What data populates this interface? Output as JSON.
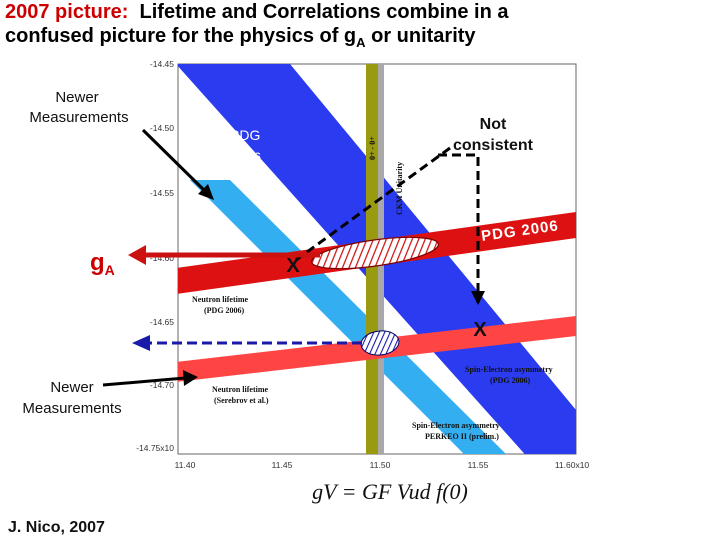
{
  "slide": {
    "title_lead": "2007 picture:",
    "title_rest_1": "Lifetime and Correlations combine in a",
    "title_line2_pre": "confused picture for the physics of g",
    "title_line2_sub": "A",
    "title_line2_post": " or unitarity",
    "credit": "J. Nico, 2007",
    "formula": "gV = GF Vud f(0)"
  },
  "annotations": {
    "newer_top_1": "Newer",
    "newer_top_2": "Measurements",
    "newer_bottom_1": "Newer",
    "newer_bottom_2": "Measurements",
    "ga_main": "g",
    "ga_sub": "A",
    "pdg_box_1": "PDG",
    "pdg_box_2": "2006",
    "not_consistent_1": "Not",
    "not_consistent_2": "consistent",
    "pdg2006_band": "PDG 2006",
    "x_left": "X",
    "x_right": "X"
  },
  "chart_data": {
    "type": "band-plot",
    "xlim": [
      11.4,
      11.6
    ],
    "ylim": [
      -14.75,
      -14.45
    ],
    "x_ticks": [
      "11.40",
      "11.45",
      "11.50",
      "11.55",
      "11.60x10"
    ],
    "y_ticks": [
      "-14.45",
      "-14.50",
      "-14.55",
      "-14.60",
      "-14.65",
      "-14.70",
      "-14.75x10"
    ],
    "bands": [
      {
        "name": "Neutron lifetime (PDG 2006)",
        "color": "#dd1111"
      },
      {
        "name": "Neutron lifetime (Serebrov et al.)",
        "color": "#ff4444"
      },
      {
        "name": "Spin-Electron asymmetry (PDG 2006)",
        "color": "#2b3bf0"
      },
      {
        "name": "Spin-Electron asymmetry PERKEO II (prelim.)",
        "color": "#33aef0"
      },
      {
        "name": "CKM Unitarity",
        "color": "#9a9a10"
      },
      {
        "name": "0+ - 0+",
        "color": "#a8a8a8"
      }
    ],
    "band_labels": {
      "lifetime_pdg_1": "Neutron lifetime",
      "lifetime_pdg_2": "(PDG 2006)",
      "lifetime_serebrov_1": "Neutron lifetime",
      "lifetime_serebrov_2": "(Serebrov et al.)",
      "asym_pdg_1": "Spin-Electron asymmetry",
      "asym_pdg_2": "(PDG 2006)",
      "asym_perkeo_1": "Spin-Electron asymmetry",
      "asym_perkeo_2": "PERKEO II (prelim.)",
      "ckm": "CKM Unitarity",
      "zero_zero": "0+ - 0+"
    },
    "colors": {
      "arrow_red": "#cc1111",
      "arrow_blue": "#1a1aaa",
      "title_red": "#cc0000"
    }
  }
}
